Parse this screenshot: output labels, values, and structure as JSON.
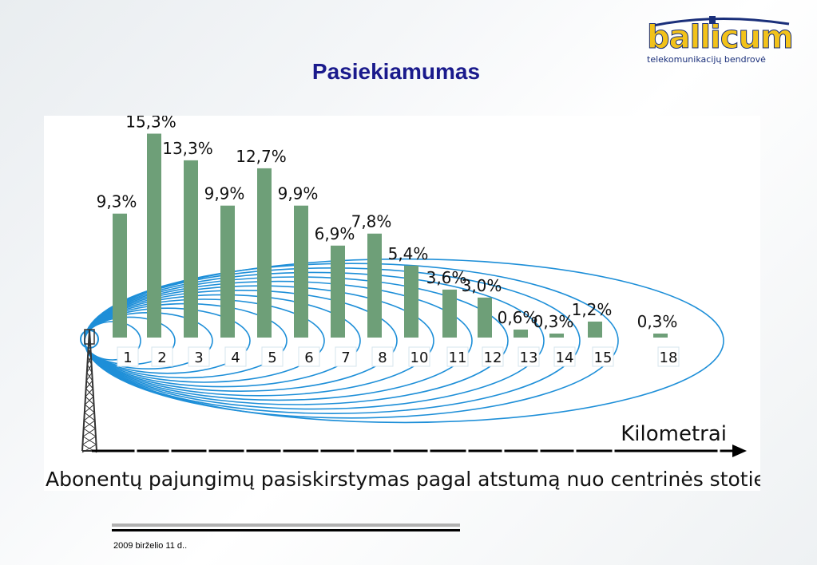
{
  "slide": {
    "title": "Pasiekiamumas",
    "date": "2009 birželio 11 d.."
  },
  "logo": {
    "word": "ballicum",
    "subtitle": "telekomunikacijų bendrovė",
    "colors": {
      "primary": "#f2c21a",
      "secondary": "#1a2f7a"
    }
  },
  "chart_data": {
    "type": "bar",
    "categories": [
      "1",
      "2",
      "3",
      "4",
      "5",
      "6",
      "7",
      "8",
      "10",
      "11",
      "12",
      "13",
      "14",
      "15",
      "18"
    ],
    "values": [
      9.3,
      15.3,
      13.3,
      9.9,
      12.7,
      9.9,
      6.9,
      7.8,
      5.4,
      3.6,
      3.0,
      0.6,
      0.3,
      1.2,
      0.3
    ],
    "value_labels": [
      "9,3%",
      "15,3%",
      "13,3%",
      "9,9%",
      "12,7%",
      "9,9%",
      "6,9%",
      "7,8%",
      "5,4%",
      "3,6%",
      "3,0%",
      "0,6%",
      "0,3%",
      "1,2%",
      "0,3%"
    ],
    "xlabel": "Kilometrai",
    "caption": "Abonentų pajungimų  pasiskirstymas pagal atstumą nuo centrinės stoties",
    "ylim": [
      0,
      16
    ],
    "grid": false,
    "colors": {
      "bar": "#6e9f78",
      "range_lines": "#1e8fd8",
      "axis": "#000000",
      "tower": "#333333"
    }
  }
}
